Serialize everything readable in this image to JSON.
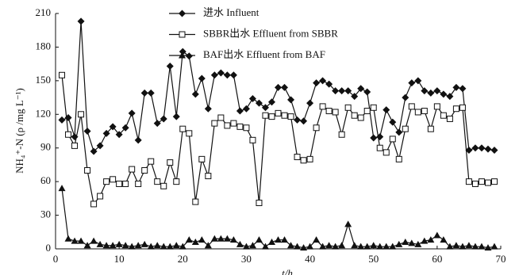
{
  "chart_data": {
    "type": "line",
    "x_label": "t/h",
    "y_label": "NH₄⁺-N (ρ /mg L⁻¹)",
    "xlim": [
      0,
      70
    ],
    "xticks": [
      0,
      10,
      20,
      30,
      40,
      50,
      60,
      70
    ],
    "ylim": [
      0,
      210
    ],
    "yticks": [
      0,
      30,
      60,
      90,
      120,
      150,
      180,
      210
    ],
    "legend": "top",
    "x": [
      1,
      2,
      3,
      4,
      5,
      6,
      7,
      8,
      9,
      10,
      11,
      12,
      13,
      14,
      15,
      16,
      17,
      18,
      19,
      20,
      21,
      22,
      23,
      24,
      25,
      26,
      27,
      28,
      29,
      30,
      31,
      32,
      33,
      34,
      35,
      36,
      37,
      38,
      39,
      40,
      41,
      42,
      43,
      44,
      45,
      46,
      47,
      48,
      49,
      50,
      51,
      52,
      53,
      54,
      55,
      56,
      57,
      58,
      59,
      60,
      61,
      62,
      63,
      64,
      65,
      66,
      67,
      68,
      69
    ],
    "series": [
      {
        "name": "进水 Influent",
        "color": "#111111",
        "marker": "diamond",
        "values": [
          115,
          117,
          100,
          203,
          105,
          87,
          92,
          103,
          109,
          102,
          108,
          121,
          97,
          139,
          139,
          112,
          116,
          163,
          118,
          176,
          172,
          138,
          152,
          125,
          155,
          157,
          155,
          155,
          123,
          125,
          134,
          130,
          126,
          131,
          144,
          144,
          133,
          115,
          114,
          130,
          148,
          150,
          147,
          141,
          141,
          141,
          136,
          143,
          140,
          99,
          100,
          124,
          113,
          104,
          135,
          148,
          150,
          141,
          139,
          141,
          138,
          136,
          144,
          143,
          88,
          90,
          90,
          89,
          88
        ]
      },
      {
        "name": "SBBR出水 Effluent from SBBR",
        "color": "#111111",
        "marker": "square",
        "values": [
          155,
          102,
          92,
          120,
          70,
          40,
          47,
          60,
          62,
          58,
          58,
          71,
          58,
          70,
          78,
          60,
          56,
          77,
          60,
          107,
          103,
          42,
          80,
          65,
          112,
          117,
          110,
          112,
          109,
          108,
          97,
          41,
          119,
          118,
          121,
          119,
          118,
          82,
          79,
          80,
          108,
          127,
          123,
          122,
          102,
          126,
          119,
          117,
          123,
          126,
          90,
          86,
          98,
          80,
          107,
          127,
          122,
          123,
          107,
          127,
          119,
          116,
          125,
          126,
          60,
          58,
          60,
          59,
          60
        ]
      },
      {
        "name": "BAF出水 Effluent from BAF",
        "color": "#111111",
        "marker": "triangle",
        "values": [
          54,
          9,
          7,
          7,
          3,
          7,
          4,
          3,
          3,
          4,
          3,
          2,
          3,
          4,
          2,
          3,
          2,
          2,
          3,
          2,
          8,
          6,
          8,
          3,
          9,
          9,
          9,
          8,
          4,
          2,
          3,
          8,
          2,
          6,
          8,
          8,
          3,
          2,
          1,
          2,
          8,
          2,
          3,
          2,
          3,
          22,
          3,
          2,
          2,
          3,
          2,
          2,
          2,
          4,
          6,
          5,
          4,
          7,
          8,
          12,
          8,
          2,
          3,
          2,
          3,
          2,
          2,
          1,
          2
        ]
      }
    ]
  }
}
